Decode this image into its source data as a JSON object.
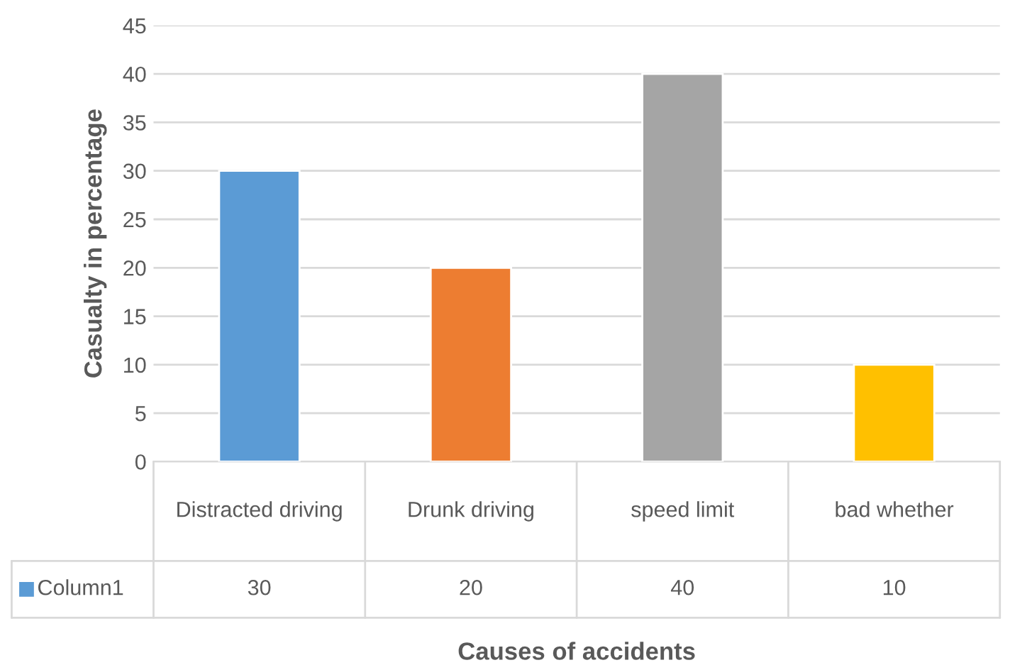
{
  "chart_data": {
    "type": "bar",
    "xlabel": "Causes of accidents",
    "ylabel": "Casualty in percentage",
    "categories": [
      "Distracted driving",
      "Drunk driving",
      "speed limit",
      "bad whether"
    ],
    "series": [
      {
        "name": "Column1",
        "colors": [
          "#5b9bd5",
          "#ed7d31",
          "#a5a5a5",
          "#ffc000"
        ],
        "values": [
          30,
          20,
          40,
          10
        ]
      }
    ],
    "ylim": [
      0,
      45
    ],
    "yticks": [
      0,
      5,
      10,
      15,
      20,
      25,
      30,
      35,
      40,
      45
    ],
    "grid": "y",
    "data_labels": true
  }
}
